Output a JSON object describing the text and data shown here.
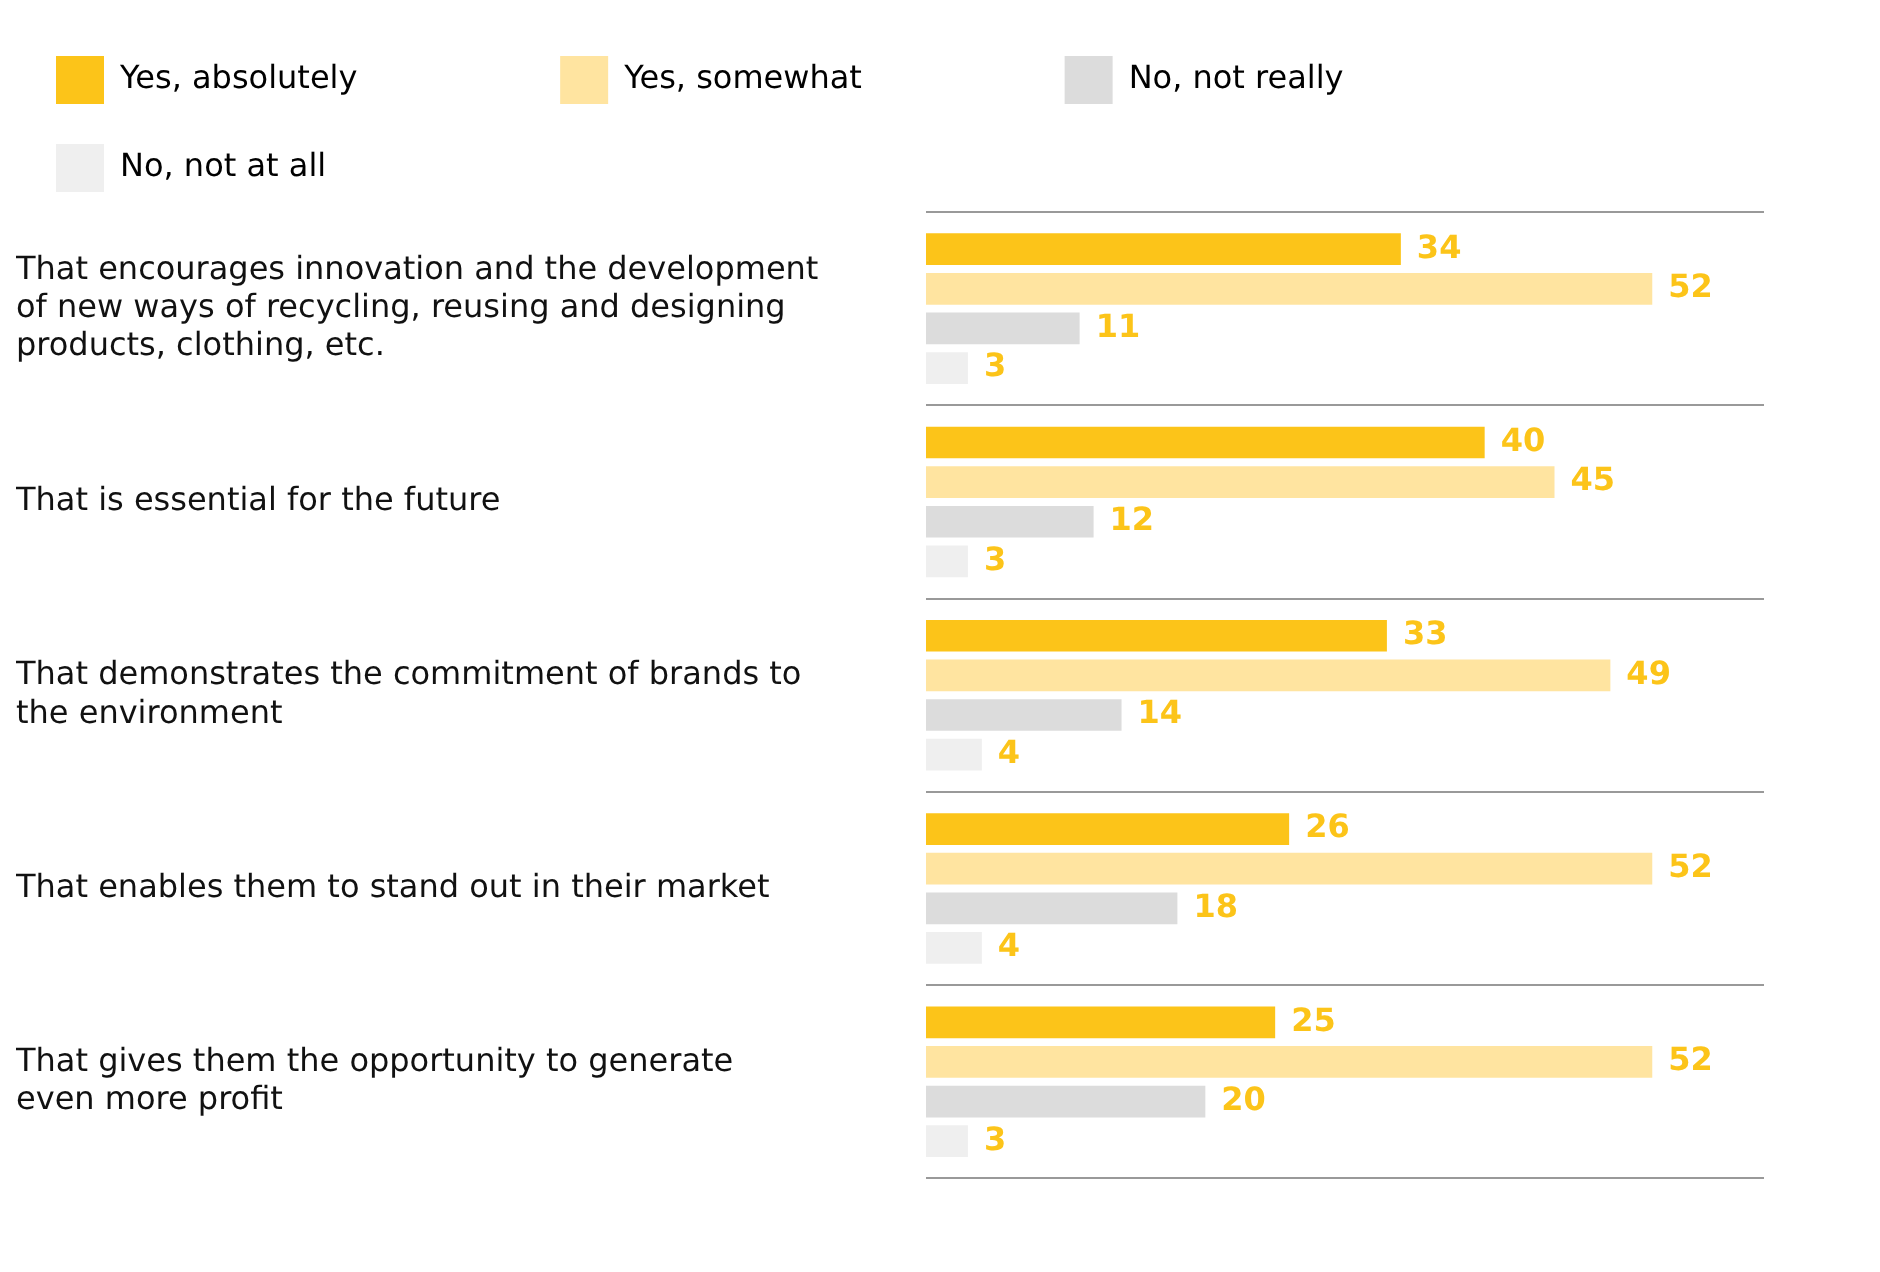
{
  "chart_data": {
    "type": "bar",
    "orientation": "horizontal",
    "data_labels": true,
    "grid": "y",
    "legend": "top",
    "categories": [
      "That encourages innovation and the development of new ways of recycling, reusing and designing products, clothing, etc.",
      "That is essential for the future",
      "That demonstrates the commitment of brands to the environment",
      "That enables them to stand out in their market",
      "That gives them the opportunity to generate even more profit"
    ],
    "series": [
      {
        "name": "Yes, absolutely",
        "color": "#fcc419",
        "values": [
          34,
          40,
          33,
          26,
          25
        ]
      },
      {
        "name": "Yes, somewhat",
        "color": "#ffe4a0",
        "values": [
          52,
          45,
          49,
          52,
          52
        ]
      },
      {
        "name": "No, not really",
        "color": "#dcdcdc",
        "values": [
          11,
          12,
          14,
          18,
          20
        ]
      },
      {
        "name": "No, not at all",
        "color": "#efefef",
        "values": [
          3,
          3,
          4,
          4,
          3
        ]
      }
    ]
  }
}
